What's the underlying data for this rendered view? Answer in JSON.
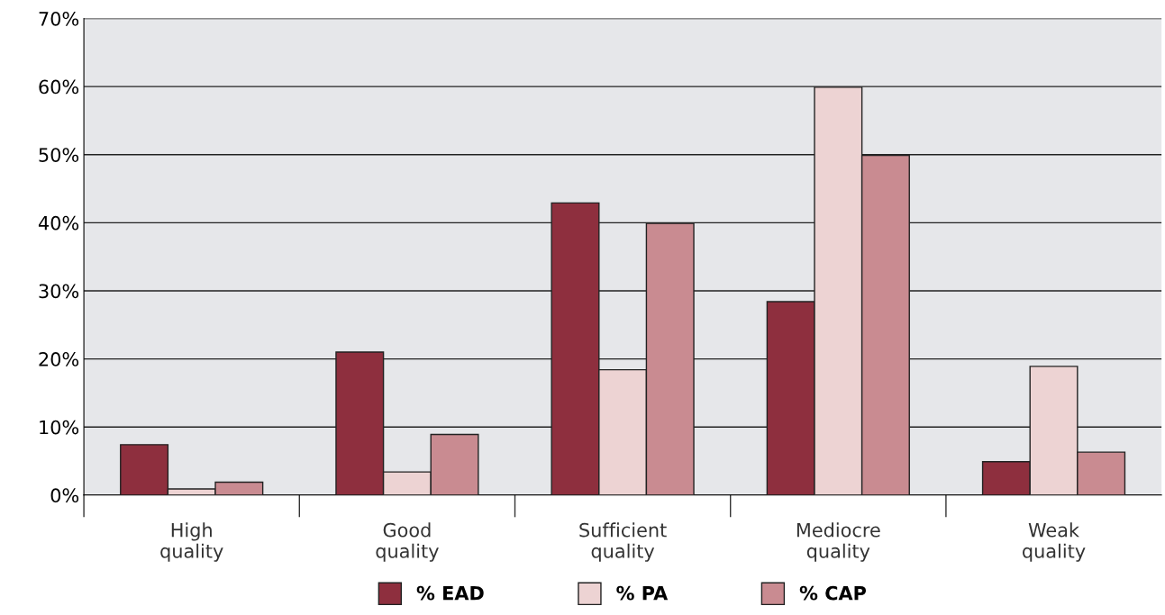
{
  "chart_data": {
    "type": "bar",
    "categories": [
      "High\nquality",
      "Good\nquality",
      "Sufficient\nquality",
      "Mediocre\nquality",
      "Weak\nquality"
    ],
    "series": [
      {
        "name": "% EAD",
        "color": "#8e2f3e",
        "values": [
          7.4,
          21,
          42.9,
          28.4,
          4.9
        ]
      },
      {
        "name": "% PA",
        "color": "#edd3d3",
        "values": [
          0.9,
          3.4,
          18.4,
          59.9,
          18.9
        ]
      },
      {
        "name": "% CAP",
        "color": "#c98b91",
        "values": [
          1.9,
          8.9,
          39.9,
          49.9,
          6.3
        ]
      }
    ],
    "ylim": [
      0,
      70
    ],
    "yticks": [
      {
        "value": 0,
        "label": "0%"
      },
      {
        "value": 10,
        "label": "10%"
      },
      {
        "value": 20,
        "label": "20%"
      },
      {
        "value": 30,
        "label": "30%"
      },
      {
        "value": 40,
        "label": "40%"
      },
      {
        "value": 50,
        "label": "50%"
      },
      {
        "value": 60,
        "label": "60%"
      },
      {
        "value": 70,
        "label": "70%"
      }
    ],
    "grid": "y",
    "legend": "bottom"
  }
}
